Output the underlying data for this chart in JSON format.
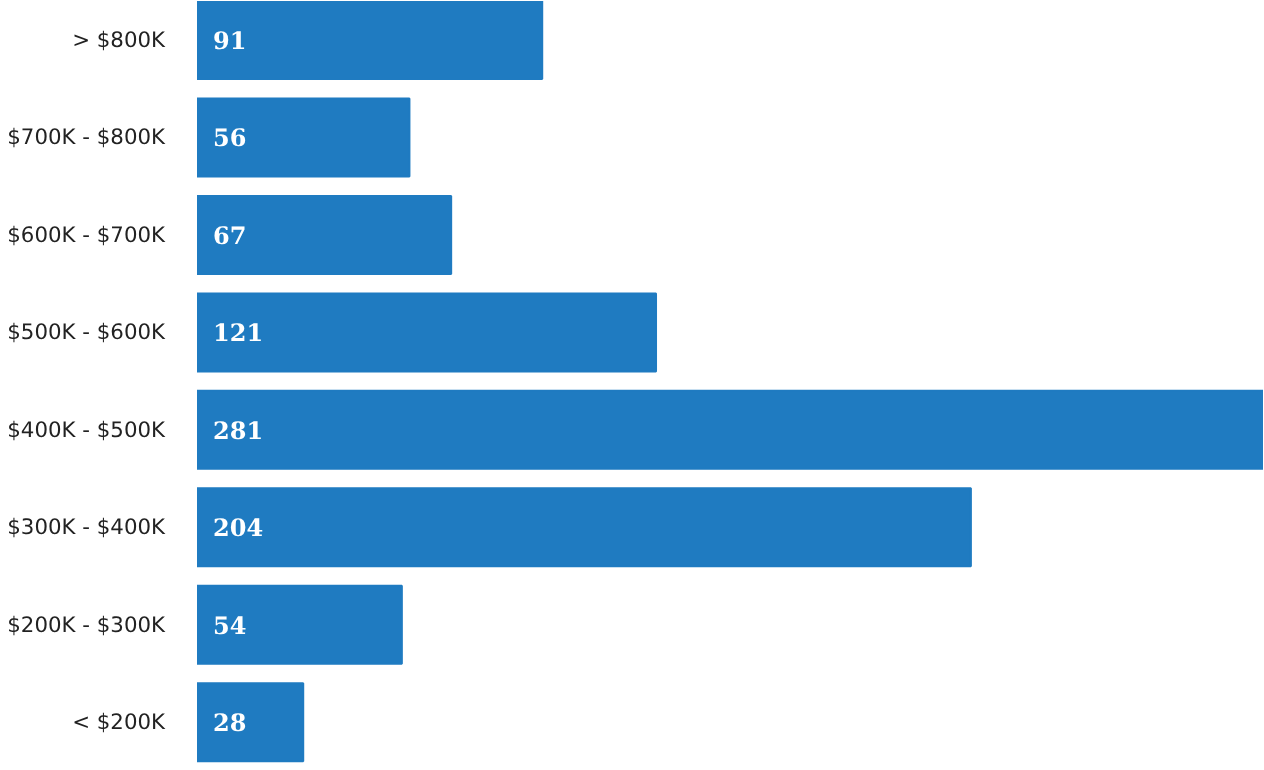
{
  "chart_data": {
    "type": "bar",
    "orientation": "horizontal",
    "categories": [
      "> $800K",
      "$700K - $800K",
      "$600K - $700K",
      "$500K - $600K",
      "$400K - $500K",
      "$300K - $400K",
      "$200K - $300K",
      "< $200K"
    ],
    "values": [
      91,
      56,
      67,
      121,
      281,
      204,
      54,
      28
    ],
    "color": "#1f7bc1",
    "data_labels": true,
    "grid": false,
    "tick_labels": "y"
  }
}
